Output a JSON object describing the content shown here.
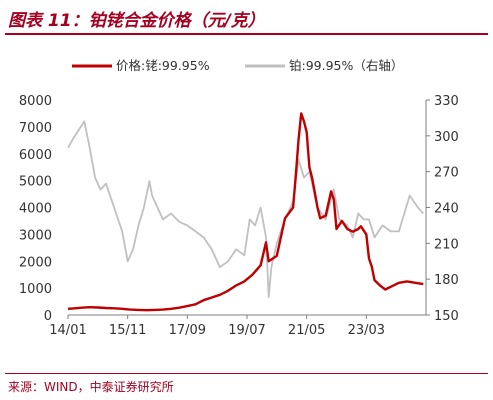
{
  "title": "图表 11：铂铑合金价格（元/克）",
  "source": "来源：WIND，中泰证券研究所",
  "colors": {
    "accent": "#a50021",
    "series1": "#c00000",
    "series2": "#c0c0c0"
  },
  "chart_data": {
    "type": "line",
    "title": "铂铑合金价格（元/克）",
    "legend_position": "top",
    "grid": false,
    "x_ticks": [
      "14/01",
      "15/11",
      "17/09",
      "19/07",
      "21/05",
      "23/03"
    ],
    "xlim": [
      "2014-01",
      "2025-01"
    ],
    "y_left": {
      "ylim": [
        0,
        8000
      ],
      "ticks": [
        "0",
        "1000",
        "2000",
        "3000",
        "4000",
        "5000",
        "6000",
        "7000",
        "8000"
      ]
    },
    "y_right": {
      "ylim": [
        150,
        330
      ],
      "ticks": [
        "150",
        "180",
        "210",
        "240",
        "270",
        "300",
        "330"
      ]
    },
    "series": [
      {
        "name": "价格:铑:99.95%",
        "axis": "left",
        "color": "#c00000",
        "x": [
          "2014-01",
          "2014-03",
          "2014-06",
          "2014-09",
          "2014-12",
          "2015-03",
          "2015-06",
          "2015-09",
          "2015-12",
          "2016-03",
          "2016-06",
          "2016-09",
          "2016-12",
          "2017-03",
          "2017-06",
          "2017-09",
          "2017-12",
          "2018-03",
          "2018-06",
          "2018-09",
          "2018-12",
          "2019-03",
          "2019-06",
          "2019-09",
          "2019-12",
          "2020-02",
          "2020-03",
          "2020-06",
          "2020-09",
          "2020-12",
          "2021-01",
          "2021-02",
          "2021-03",
          "2021-04",
          "2021-05",
          "2021-06",
          "2021-07",
          "2021-09",
          "2021-10",
          "2021-12",
          "2022-02",
          "2022-03",
          "2022-04",
          "2022-06",
          "2022-08",
          "2022-10",
          "2022-12",
          "2023-01",
          "2023-03",
          "2023-04",
          "2023-05",
          "2023-06",
          "2023-08",
          "2023-10",
          "2023-12",
          "2024-03",
          "2024-06",
          "2024-09",
          "2024-12"
        ],
        "values": [
          230,
          245,
          270,
          290,
          280,
          260,
          250,
          230,
          200,
          190,
          180,
          190,
          200,
          230,
          270,
          330,
          400,
          550,
          650,
          750,
          900,
          1100,
          1250,
          1500,
          1850,
          2700,
          2000,
          2200,
          3600,
          4000,
          5200,
          6500,
          7500,
          7200,
          6800,
          5500,
          5100,
          4000,
          3600,
          3700,
          4600,
          4300,
          3200,
          3500,
          3200,
          3100,
          3200,
          3300,
          3000,
          2100,
          1800,
          1300,
          1100,
          950,
          1050,
          1200,
          1250,
          1200,
          1150
        ]
      },
      {
        "name": "铂:99.95%（右轴）",
        "axis": "right",
        "color": "#c0c0c0",
        "x": [
          "2014-01",
          "2014-03",
          "2014-05",
          "2014-07",
          "2014-09",
          "2014-11",
          "2015-01",
          "2015-03",
          "2015-06",
          "2015-09",
          "2015-11",
          "2016-01",
          "2016-03",
          "2016-05",
          "2016-07",
          "2016-08",
          "2016-10",
          "2016-12",
          "2017-03",
          "2017-06",
          "2017-09",
          "2017-12",
          "2018-03",
          "2018-06",
          "2018-09",
          "2018-12",
          "2019-03",
          "2019-06",
          "2019-08",
          "2019-10",
          "2019-12",
          "2020-02",
          "2020-03",
          "2020-04",
          "2020-06",
          "2020-09",
          "2020-12",
          "2021-02",
          "2021-04",
          "2021-06",
          "2021-09",
          "2021-12",
          "2022-03",
          "2022-05",
          "2022-08",
          "2022-10",
          "2022-12",
          "2023-02",
          "2023-04",
          "2023-06",
          "2023-09",
          "2023-12",
          "2024-03",
          "2024-05",
          "2024-07",
          "2024-10",
          "2024-12"
        ],
        "values": [
          290,
          298,
          305,
          312,
          290,
          265,
          255,
          260,
          240,
          220,
          195,
          205,
          225,
          240,
          262,
          250,
          240,
          230,
          235,
          228,
          225,
          220,
          215,
          205,
          190,
          195,
          205,
          200,
          230,
          225,
          240,
          215,
          165,
          190,
          210,
          230,
          245,
          280,
          265,
          270,
          240,
          230,
          255,
          230,
          225,
          215,
          235,
          230,
          230,
          215,
          225,
          220,
          220,
          235,
          250,
          240,
          235
        ]
      }
    ]
  },
  "legend": {
    "s1_label": "价格:铑:99.95%",
    "s2_label": "铂:99.95%（右轴）"
  }
}
